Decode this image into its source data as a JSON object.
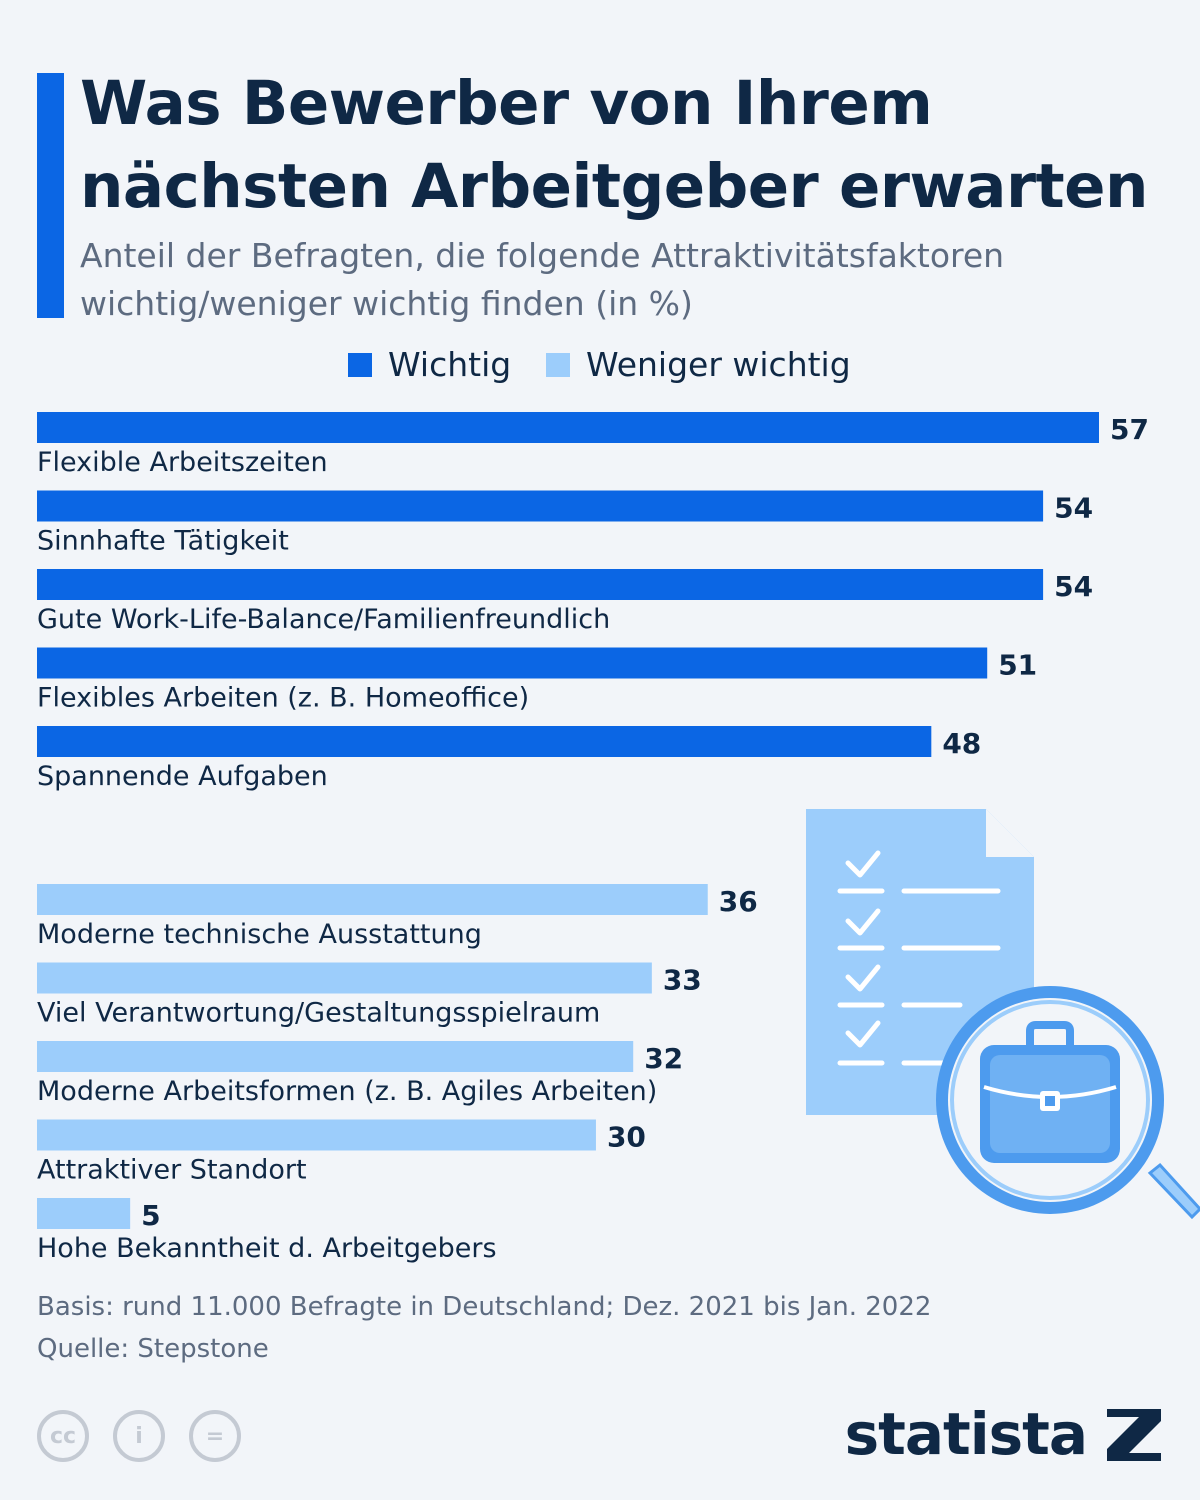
{
  "title": "Was Bewerber von Ihrem nächsten Arbeitgeber erwarten",
  "subtitle": "Anteil der Befragten, die folgende Attraktivitätsfaktoren wichtig/weniger wichtig finden (in %)",
  "colors": {
    "wichtig": "#0b66e4",
    "weniger_wichtig": "#9ccdfb",
    "text": "#0f2845",
    "muted": "#5d6b80"
  },
  "legend": [
    {
      "label": "Wichtig",
      "color": "#0b66e4"
    },
    {
      "label": "Weniger wichtig",
      "color": "#9ccdfb"
    }
  ],
  "chart_data": {
    "type": "bar",
    "orientation": "horizontal",
    "xlim": [
      0,
      57
    ],
    "groups": [
      {
        "name": "Wichtig",
        "color": "#0b66e4",
        "categories": [
          "Flexible Arbeitszeiten",
          "Sinnhafte Tätigkeit",
          "Gute Work-Life-Balance/Familienfreundlich",
          "Flexibles Arbeiten (z. B. Homeoffice)",
          "Spannende Aufgaben"
        ],
        "values": [
          57,
          54,
          54,
          51,
          48
        ]
      },
      {
        "name": "Weniger wichtig",
        "color": "#9ccdfb",
        "categories": [
          "Moderne technische Ausstattung",
          "Viel Verantwortung/Gestaltungsspielraum",
          "Moderne Arbeitsformen (z. B. Agiles Arbeiten)",
          "Attraktiver Standort",
          "Hohe Bekanntheit d. Arbeitgebers"
        ],
        "values": [
          36,
          33,
          32,
          30,
          5
        ]
      }
    ]
  },
  "illustration": {
    "icon": "checklist-magnifier-briefcase-icon"
  },
  "footer": {
    "basis": "Basis: rund 11.000 Befragte in Deutschland; Dez. 2021 bis Jan. 2022",
    "source": "Quelle: Stepstone"
  },
  "license_icons": [
    {
      "icon": "cc-icon",
      "glyph": "cc"
    },
    {
      "icon": "attribution-icon",
      "glyph": "i"
    },
    {
      "icon": "no-derivatives-icon",
      "glyph": "="
    }
  ],
  "brand": {
    "name": "statista"
  }
}
